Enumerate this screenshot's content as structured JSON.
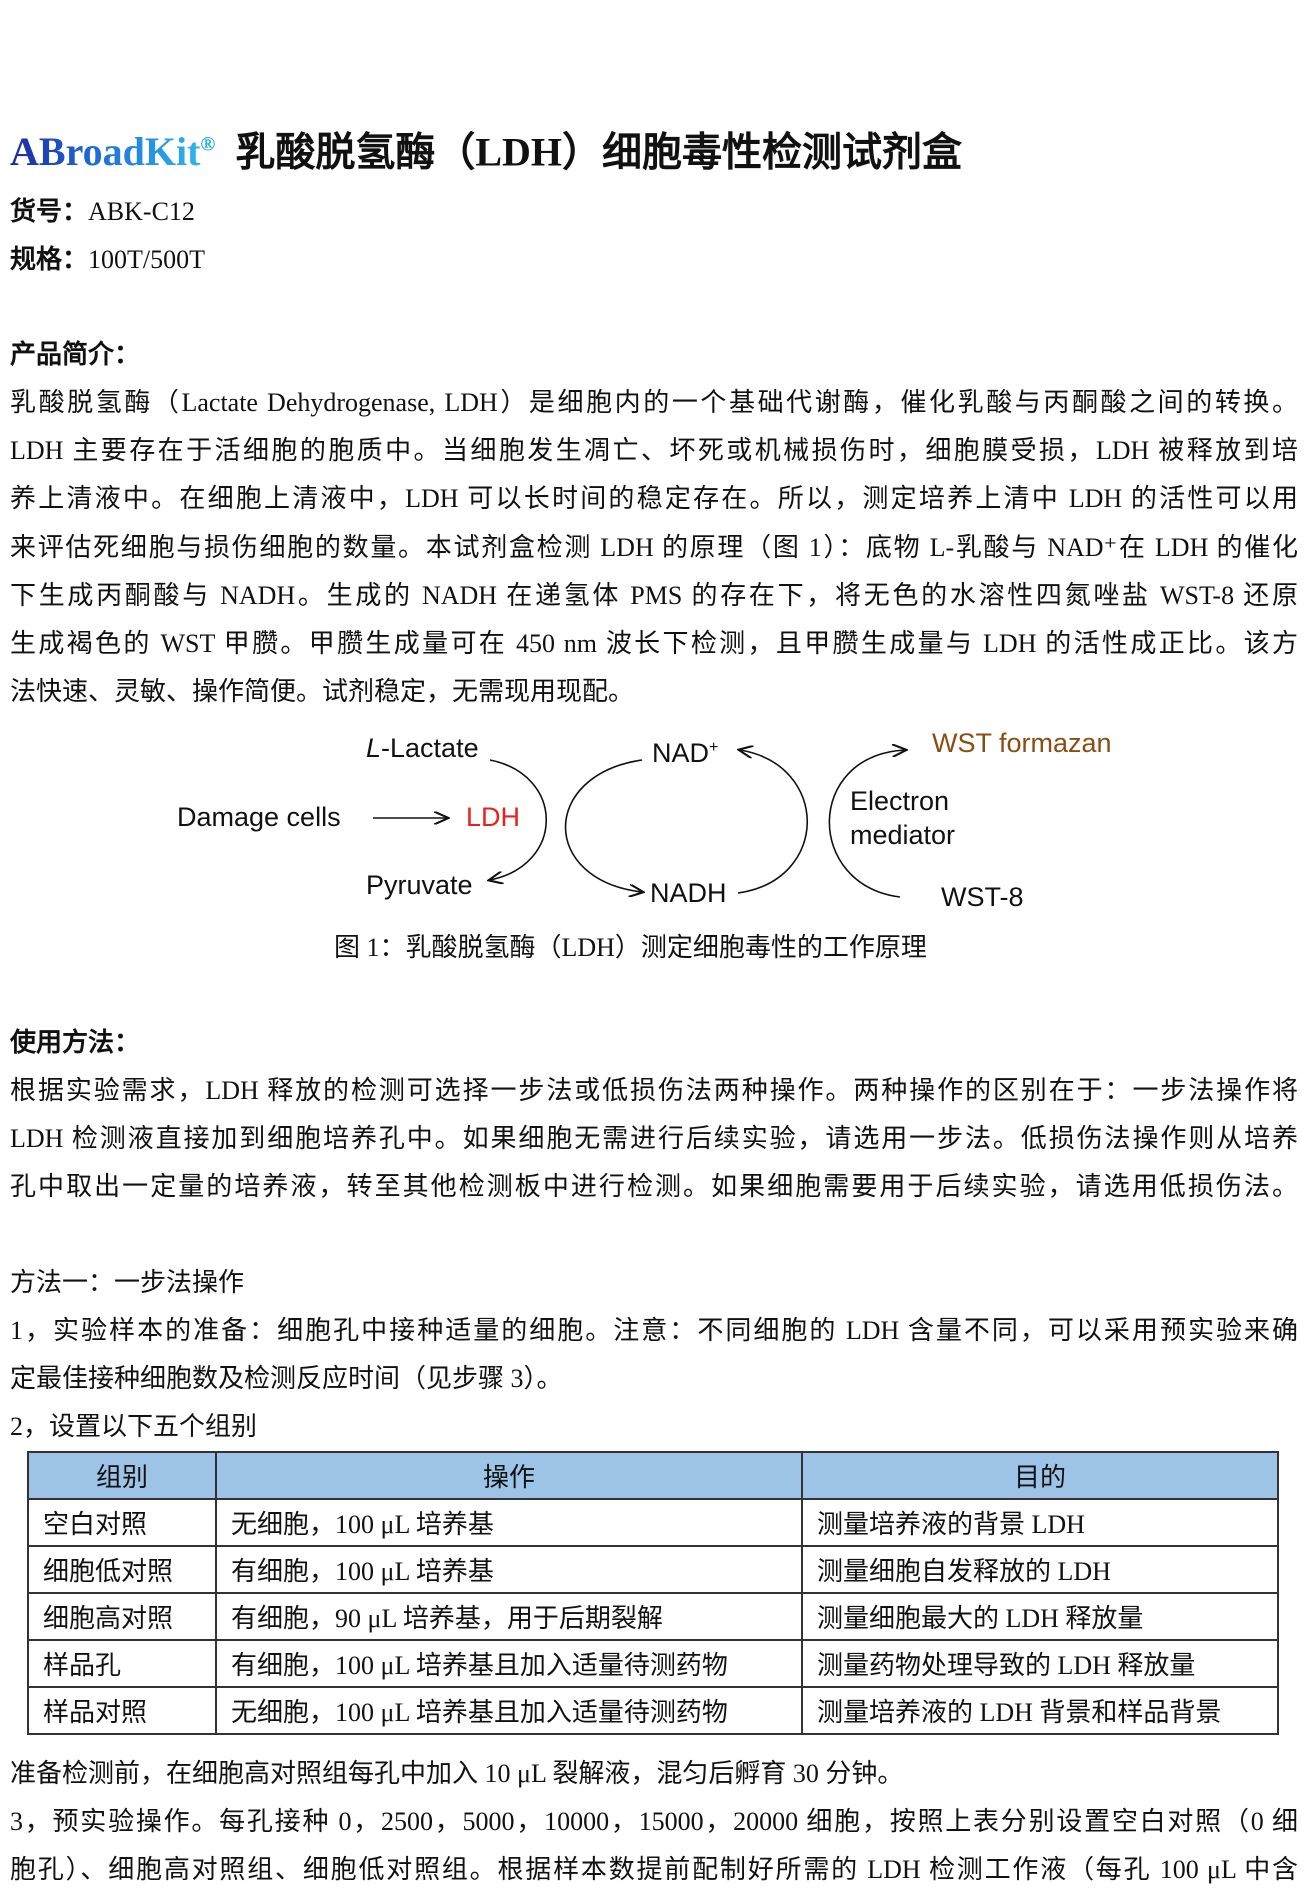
{
  "header": {
    "brand": "ABroadKit",
    "brand_mark": "®",
    "title": "乳酸脱氢酶（LDH）细胞毒性检测试剂盒"
  },
  "meta": {
    "catalog_label": "货号：",
    "catalog": "ABK-C12",
    "spec_label": "规格：",
    "spec": "100T/500T"
  },
  "intro": {
    "heading": "产品简介：",
    "lines": [
      "乳酸脱氢酶（Lactate Dehydrogenase, LDH）是细胞内的一个基础代谢酶，催化乳酸与丙酮酸之间的转换。",
      "LDH 主要存在于活细胞的胞质中。当细胞发生凋亡、坏死或机械损伤时，细胞膜受损，LDH 被释放到培",
      "养上清液中。在细胞上清液中，LDH 可以长时间的稳定存在。所以，测定培养上清中 LDH 的活性可以用",
      "来评估死细胞与损伤细胞的数量。本试剂盒检测 LDH 的原理（图 1）：底物 L-乳酸与 NAD⁺在 LDH 的催化",
      "下生成丙酮酸与 NADH。生成的 NADH 在递氢体 PMS 的存在下，将无色的水溶性四氮唑盐 WST-8 还原",
      "生成褐色的 WST 甲臜。甲臜生成量可在 450 nm 波长下检测，且甲臜生成量与 LDH 的活性成正比。该方",
      "法快速、灵敏、操作简便。试剂稳定，无需现用现配。"
    ]
  },
  "figure": {
    "l_lactate_italic": "L",
    "l_lactate": "-Lactate",
    "nad": "NAD",
    "nad_sup": "+",
    "wst_formazan": "WST formazan",
    "damage_cells": "Damage cells",
    "ldh": "LDH",
    "electron": "Electron",
    "mediator": "mediator",
    "pyruvate": "Pyruvate",
    "nadh": "NADH",
    "wst8": "WST-8",
    "caption": "图 1：乳酸脱氢酶（LDH）测定细胞毒性的工作原理",
    "colors": {
      "ldh": "#e8201e",
      "formazan": "#8a4d12"
    }
  },
  "usage": {
    "heading": "使用方法：",
    "lines": [
      "根据实验需求，LDH 释放的检测可选择一步法或低损伤法两种操作。两种操作的区别在于：一步法操作将",
      "LDH 检测液直接加到细胞培养孔中。如果细胞无需进行后续实验，请选用一步法。低损伤法操作则从培养",
      "孔中取出一定量的培养液，转至其他检测板中进行检测。如果细胞需要用于后续实验，请选用低损伤法。"
    ]
  },
  "method1": {
    "heading": "方法一：一步法操作",
    "step1": [
      "1，实验样本的准备：细胞孔中接种适量的细胞。注意：不同细胞的 LDH 含量不同，可以采用预实验来确",
      "定最佳接种细胞数及检测反应时间（见步骤 3）。"
    ],
    "step2": "2，设置以下五个组别",
    "table": {
      "headers": [
        "组别",
        "操作",
        "目的"
      ],
      "rows": [
        [
          "空白对照",
          "无细胞，100 μL 培养基",
          "测量培养液的背景 LDH"
        ],
        [
          "细胞低对照",
          "有细胞，100 μL 培养基",
          "测量细胞自发释放的 LDH"
        ],
        [
          "细胞高对照",
          "有细胞，90 μL 培养基，用于后期裂解",
          "测量细胞最大的 LDH 释放量"
        ],
        [
          "样品孔",
          "有细胞，100 μL 培养基且加入适量待测药物",
          "测量药物处理导致的 LDH 释放量"
        ],
        [
          "样品对照",
          "无细胞，100 μL 培养基且加入适量待测药物",
          "测量培养液的 LDH 背景和样品背景"
        ]
      ]
    },
    "note": "准备检测前，在细胞高对照组每孔中加入 10 μL 裂解液，混匀后孵育 30 分钟。",
    "step3": [
      "3，预实验操作。每孔接种 0，2500，5000，10000，15000，20000 细胞，按照上表分别设置空白对照（0 细",
      "胞孔）、细胞高对照组、细胞低对照组。根据样本数提前配制好所需的 LDH 检测工作液（每孔 100 μL 中含"
    ]
  }
}
